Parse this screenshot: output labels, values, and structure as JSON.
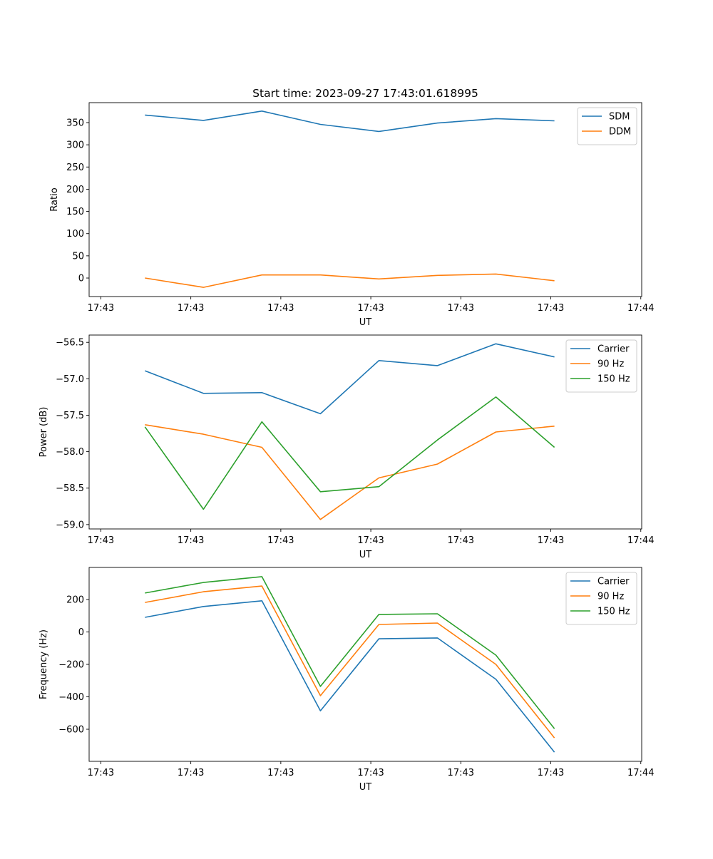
{
  "title": "Start time: 2023-09-27 17:43:01.618995",
  "colors": {
    "blue": "#1f77b4",
    "orange": "#ff7f0e",
    "green": "#2ca02c"
  },
  "chart_data": [
    {
      "type": "line",
      "title": "Start time: 2023-09-27 17:43:01.618995",
      "xlabel": "UT",
      "ylabel": "Ratio",
      "x_unit": "seconds after 17:43:00",
      "x": [
        4.9,
        11.4,
        17.9,
        24.4,
        30.9,
        37.4,
        43.9,
        50.4
      ],
      "xlim": [
        -1.3,
        60.1
      ],
      "xticks": [
        0,
        10,
        20,
        30,
        40,
        50,
        60
      ],
      "xtick_labels": [
        "17:43",
        "17:43",
        "17:43",
        "17:43",
        "17:43",
        "17:43",
        "17:44"
      ],
      "ylim": [
        -41.7,
        394.9
      ],
      "yticks": [
        0,
        50,
        100,
        150,
        200,
        250,
        300,
        350
      ],
      "ytick_labels": [
        "0",
        "50",
        "100",
        "150",
        "200",
        "250",
        "300",
        "350"
      ],
      "legend_position": "top-right",
      "series": [
        {
          "name": "SDM",
          "color": "#1f77b4",
          "values": [
            367,
            355,
            376,
            346,
            330,
            349,
            359,
            354
          ]
        },
        {
          "name": "DDM",
          "color": "#ff7f0e",
          "values": [
            0,
            -21,
            7,
            7,
            -2,
            6,
            9,
            -6
          ]
        }
      ]
    },
    {
      "type": "line",
      "xlabel": "UT",
      "ylabel": "Power (dB)",
      "x_unit": "seconds after 17:43:00",
      "x": [
        4.9,
        11.4,
        17.9,
        24.4,
        30.9,
        37.4,
        43.9,
        50.4
      ],
      "xlim": [
        -1.3,
        60.1
      ],
      "xticks": [
        0,
        10,
        20,
        30,
        40,
        50,
        60
      ],
      "xtick_labels": [
        "17:43",
        "17:43",
        "17:43",
        "17:43",
        "17:43",
        "17:43",
        "17:44"
      ],
      "ylim": [
        -59.06,
        -56.4
      ],
      "yticks": [
        -59.0,
        -58.5,
        -58.0,
        -57.5,
        -57.0,
        -56.5
      ],
      "ytick_labels": [
        "−59.0",
        "−58.5",
        "−58.0",
        "−57.5",
        "−57.0",
        "−56.5"
      ],
      "legend_position": "top-right",
      "series": [
        {
          "name": "Carrier",
          "color": "#1f77b4",
          "values": [
            -56.89,
            -57.2,
            -57.19,
            -57.48,
            -56.75,
            -56.82,
            -56.52,
            -56.7
          ]
        },
        {
          "name": "90 Hz",
          "color": "#ff7f0e",
          "values": [
            -57.63,
            -57.76,
            -57.94,
            -58.93,
            -58.36,
            -58.17,
            -57.73,
            -57.65
          ]
        },
        {
          "name": "150 Hz",
          "color": "#2ca02c",
          "values": [
            -57.66,
            -58.79,
            -57.59,
            -58.55,
            -58.48,
            -57.84,
            -57.25,
            -57.94
          ]
        }
      ]
    },
    {
      "type": "line",
      "xlabel": "UT",
      "ylabel": "Frequency (Hz)",
      "x_unit": "seconds after 17:43:00",
      "x": [
        4.9,
        11.4,
        17.9,
        24.4,
        30.9,
        37.4,
        43.9,
        50.4
      ],
      "xlim": [
        -1.3,
        60.1
      ],
      "xticks": [
        0,
        10,
        20,
        30,
        40,
        50,
        60
      ],
      "xtick_labels": [
        "17:43",
        "17:43",
        "17:43",
        "17:43",
        "17:43",
        "17:43",
        "17:44"
      ],
      "ylim": [
        -797.8,
        397.8
      ],
      "yticks": [
        -600,
        -400,
        -200,
        0,
        200
      ],
      "ytick_labels": [
        "−600",
        "−400",
        "−200",
        "0",
        "200"
      ],
      "legend_position": "top-right",
      "series": [
        {
          "name": "Carrier",
          "color": "#1f77b4",
          "values": [
            90,
            157,
            192,
            -486,
            -42,
            -37,
            -292,
            -741
          ]
        },
        {
          "name": "90 Hz",
          "color": "#ff7f0e",
          "values": [
            182,
            248,
            283,
            -393,
            46,
            55,
            -200,
            -653
          ]
        },
        {
          "name": "150 Hz",
          "color": "#2ca02c",
          "values": [
            240,
            305,
            341,
            -336,
            108,
            112,
            -143,
            -596
          ]
        }
      ]
    }
  ]
}
